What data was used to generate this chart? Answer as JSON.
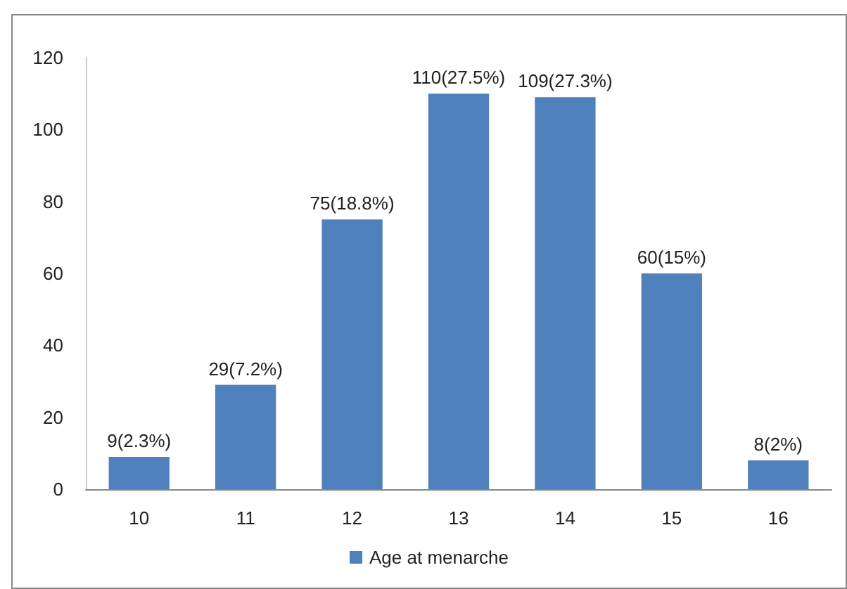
{
  "chart_data": {
    "type": "bar",
    "categories": [
      "10",
      "11",
      "12",
      "13",
      "14",
      "15",
      "16"
    ],
    "series": [
      {
        "name": "Age at menarche",
        "color": "#4f81bd",
        "values": [
          9,
          29,
          75,
          110,
          109,
          60,
          8
        ],
        "value_labels": [
          "9(2.3%)",
          "29(7.2%)",
          "75(18.8%)",
          "110(27.5%)",
          "109(27.3%)",
          "60(15%)",
          "8(2%)"
        ]
      }
    ],
    "ylim": [
      0,
      120
    ],
    "yticks": [
      0,
      20,
      40,
      60,
      80,
      100,
      120
    ],
    "grid": false,
    "legend": "bottom"
  }
}
